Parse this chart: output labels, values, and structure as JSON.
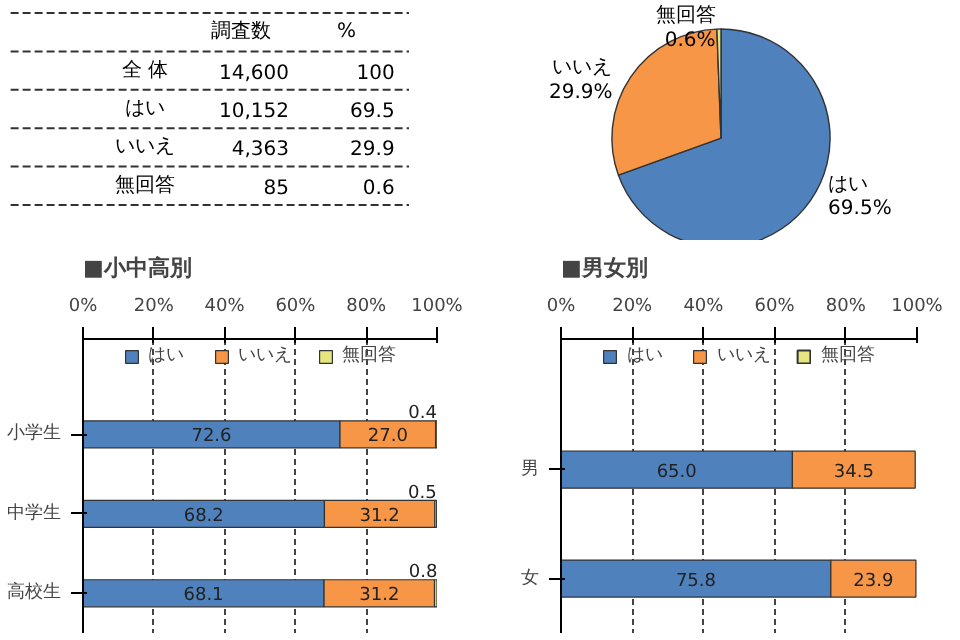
{
  "chart_data": [
    {
      "type": "other",
      "categories": [
        "全 体",
        "はい",
        "いいえ",
        "無回答"
      ],
      "series": [
        {
          "name": "調査数",
          "values": [
            14600,
            10152,
            4363,
            85
          ],
          "value_labels": [
            "14,600",
            "10,152",
            "4,363",
            "85"
          ]
        },
        {
          "name": "%",
          "values": [
            100,
            69.5,
            29.9,
            0.6
          ],
          "value_labels": [
            "100",
            "69.5",
            "29.9",
            "0.6"
          ]
        }
      ]
    },
    {
      "type": "pie",
      "categories": [
        "はい",
        "いいえ",
        "無回答"
      ],
      "values": [
        69.5,
        29.9,
        0.6
      ],
      "colors": [
        "#4f81bd",
        "#f79646",
        "#e6e680"
      ],
      "value_labels": [
        "69.5%",
        "29.9%",
        "0.6%"
      ]
    },
    {
      "type": "bar",
      "title": "■小中高別",
      "orientation": "horizontal",
      "stacked": true,
      "categories": [
        "小学生",
        "中学生",
        "高校生"
      ],
      "series": [
        {
          "name": "はい",
          "color": "#4f81bd",
          "values": [
            72.6,
            68.2,
            68.1
          ]
        },
        {
          "name": "いいえ",
          "color": "#f79646",
          "values": [
            27.0,
            31.2,
            31.2
          ],
          "value_labels": [
            "27.0",
            "31.2",
            "31.2"
          ]
        },
        {
          "name": "無回答",
          "color": "#e6e680",
          "values": [
            0.4,
            0.5,
            0.8
          ]
        }
      ],
      "xlim": [
        0,
        100
      ],
      "xticks": [
        {
          "value": 0,
          "label": "0%"
        },
        {
          "value": 20,
          "label": "20%"
        },
        {
          "value": 40,
          "label": "40%"
        },
        {
          "value": 60,
          "label": "60%"
        },
        {
          "value": 80,
          "label": "80%"
        },
        {
          "value": 100,
          "label": "100%"
        }
      ],
      "grid": "x",
      "legend": "top",
      "data_labels": true
    },
    {
      "type": "bar",
      "title": "■男女別",
      "orientation": "horizontal",
      "stacked": true,
      "categories": [
        "男",
        "女"
      ],
      "series": [
        {
          "name": "はい",
          "color": "#4f81bd",
          "values": [
            65.0,
            75.8
          ],
          "value_labels": [
            "65.0",
            "75.8"
          ]
        },
        {
          "name": "いいえ",
          "color": "#f79646",
          "values": [
            34.5,
            23.9
          ]
        },
        {
          "name": "無回答",
          "color": "#e6e680",
          "values": [
            null,
            null
          ]
        }
      ],
      "xlim": [
        0,
        100
      ],
      "xticks": [
        {
          "value": 0,
          "label": "0%"
        },
        {
          "value": 20,
          "label": "20%"
        },
        {
          "value": 40,
          "label": "40%"
        },
        {
          "value": 60,
          "label": "60%"
        },
        {
          "value": 80,
          "label": "80%"
        },
        {
          "value": 100,
          "label": "100%"
        }
      ],
      "grid": "x",
      "legend": "top",
      "data_labels": true
    }
  ]
}
